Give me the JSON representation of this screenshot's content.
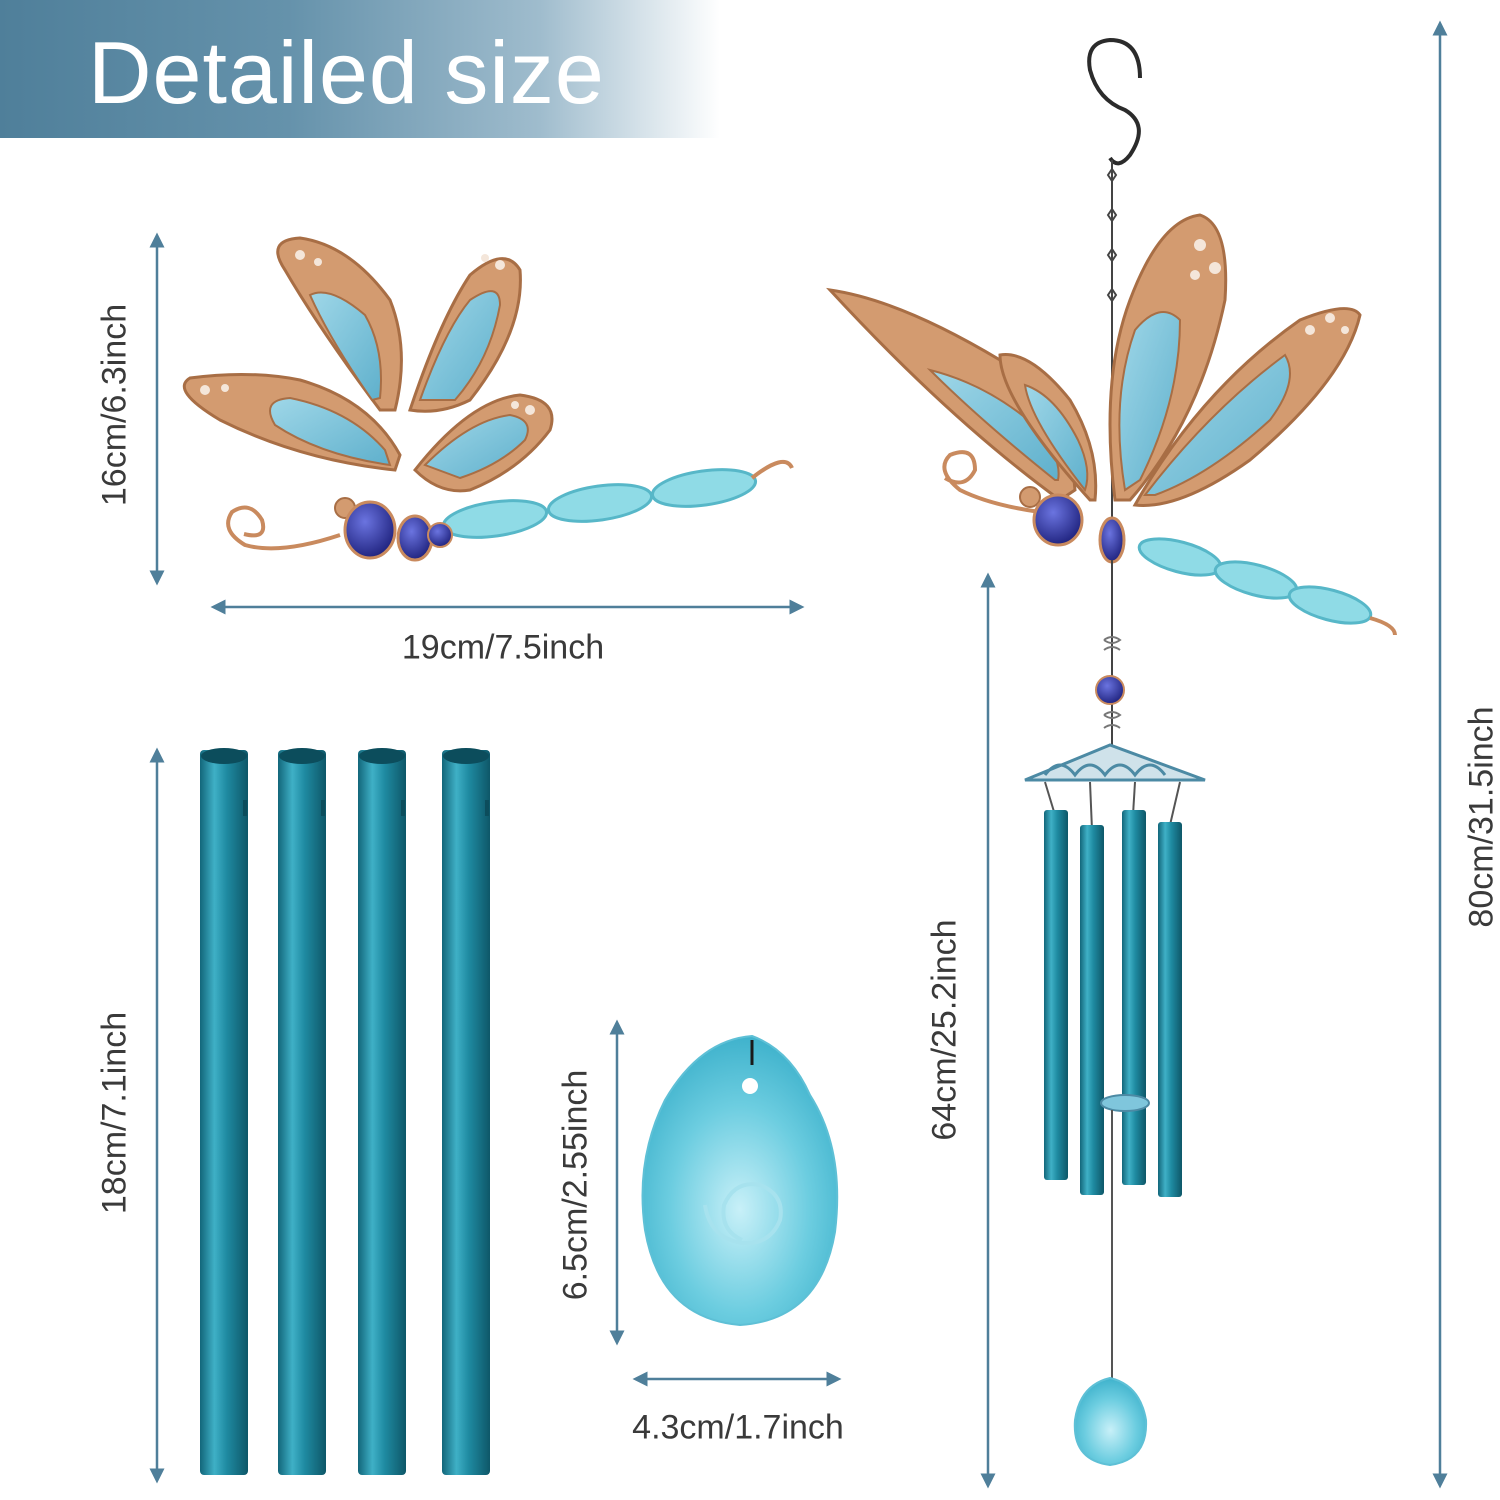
{
  "banner": {
    "title": "Detailed size"
  },
  "dimensions": {
    "dragonfly_height": "16cm/6.3inch",
    "dragonfly_width": "19cm/7.5inch",
    "tube_length": "18cm/7.1inch",
    "pendant_height": "6.5cm/2.55inch",
    "pendant_width": "4.3cm/1.7inch",
    "chime_length": "64cm/25.2inch",
    "total_length": "80cm/31.5inch"
  },
  "colors": {
    "banner": "#5b8aa4",
    "arrow": "#4f7f9a",
    "copper": "#c98a5e",
    "glass_blue": "#7fc6dc",
    "tube": "#2a8fa6",
    "bead": "#2b2f9c"
  }
}
